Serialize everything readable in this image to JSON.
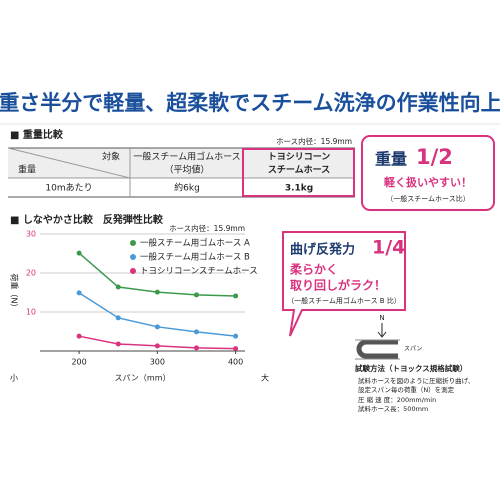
{
  "title": "重さ半分で軽量、超柔軟でスチーム洗浄の作業性向上",
  "weight_section": {
    "heading": "■ 重量比較",
    "note": "ホース内径：15.9mm"
  },
  "table": {
    "corner_top": "対象",
    "corner_bottom": "重量",
    "header": [
      [
        "一般スチーム用ゴムホース",
        "（平均値）"
      ],
      [
        "トヨシリコーン",
        "スチームホース"
      ]
    ],
    "rows": [
      [
        "10mあたり",
        "約6kg",
        "3.1kg"
      ]
    ]
  },
  "callout_weight": {
    "label": "重量",
    "ratio": "1/2",
    "text": "軽く扱いやすい！",
    "note": "（一般スチームホース比）"
  },
  "flex_section": {
    "heading": "■ しなやかさ比較　反発弾性比較",
    "note": "ホース内径：15.9mm"
  },
  "chart_data": {
    "type": "line",
    "y_label": "荷重（N）",
    "x_label": "スパン（mm）",
    "x_low": "小",
    "x_high": "大",
    "x": [
      200,
      250,
      300,
      350,
      400
    ],
    "series": [
      {
        "name": "一般スチーム用ゴムホース A",
        "color": "#3a9a4a",
        "values": [
          25.1,
          16.4,
          15.1,
          14.4,
          14.1
        ]
      },
      {
        "name": "一般スチーム用ゴムホース B",
        "color": "#4a9ad8",
        "values": [
          14.9,
          8.5,
          6.2,
          4.9,
          3.8
        ]
      },
      {
        "name": "トヨシリコーンスチームホース",
        "color": "#d9337f",
        "values": [
          3.8,
          1.8,
          1.3,
          0.8,
          0.6
        ]
      }
    ],
    "xlim": [
      150,
      412
    ],
    "ylim": [
      0,
      30
    ],
    "xticks": [
      200,
      300,
      400
    ],
    "yticks": [
      10,
      20,
      30
    ],
    "grid": true,
    "legend": "upper right"
  },
  "callout_flex": {
    "label": "曲げ反発力",
    "ratio": "1/4",
    "lines": [
      "柔らかく",
      "取り回しがラク！"
    ],
    "note": "（一般スチーム用ゴムホース B 比）"
  },
  "diagram": {
    "force": "N",
    "span": "スパン"
  },
  "test_method": {
    "title": "試験方法（トヨックス規格試験）",
    "lines": [
      "試料ホースを図のように圧縮折り曲げ、",
      "設定スパン毎の荷重（N）を測定",
      "圧 縮 速 度：200mm/min",
      "試料ホース長：500mm"
    ]
  }
}
